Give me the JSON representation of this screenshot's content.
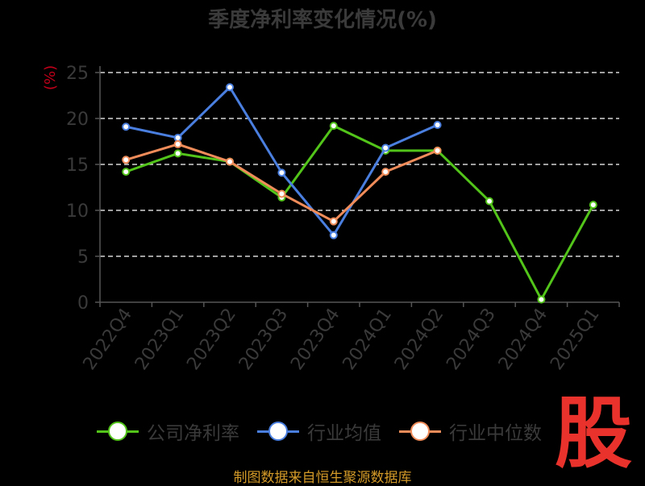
{
  "title": "季度净利率变化情况(%)",
  "ylabel": "(%)",
  "source": "制图数据来自恒生聚源数据库",
  "logo": "股",
  "legend": [
    {
      "name": "公司净利率",
      "color": "#52c41a"
    },
    {
      "name": "行业均值",
      "color": "#4a7fe0"
    },
    {
      "name": "行业中位数",
      "color": "#f08c5a"
    }
  ],
  "chart_data": {
    "type": "line",
    "categories": [
      "2022Q4",
      "2023Q1",
      "2023Q2",
      "2023Q3",
      "2023Q4",
      "2024Q1",
      "2024Q2",
      "2024Q3",
      "2024Q4",
      "2025Q1"
    ],
    "ylim": [
      0,
      25
    ],
    "yticks": [
      0,
      5,
      10,
      15,
      20,
      25
    ],
    "grid": true,
    "legend_position": "bottom",
    "series": [
      {
        "name": "公司净利率",
        "color": "#52c41a",
        "values": [
          14.2,
          16.2,
          15.3,
          11.4,
          19.2,
          16.5,
          16.5,
          11.0,
          0.3,
          10.6
        ]
      },
      {
        "name": "行业均值",
        "color": "#4a7fe0",
        "values": [
          19.1,
          17.9,
          23.4,
          14.1,
          7.3,
          16.8,
          19.3,
          null,
          null,
          null
        ]
      },
      {
        "name": "行业中位数",
        "color": "#f08c5a",
        "values": [
          15.5,
          17.2,
          15.3,
          11.8,
          8.8,
          14.2,
          16.5,
          null,
          null,
          null
        ]
      }
    ]
  }
}
